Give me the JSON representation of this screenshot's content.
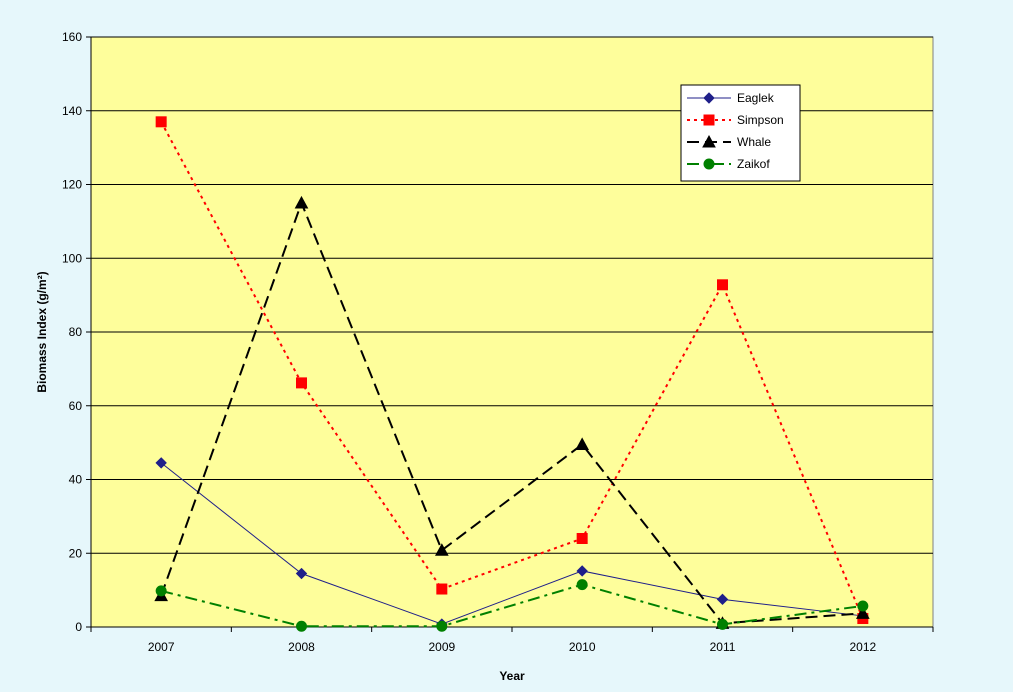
{
  "chart_data": {
    "type": "line",
    "title": "",
    "xlabel": "Year",
    "ylabel": "Biomass Index (g/m²)",
    "categories": [
      "2007",
      "2008",
      "2009",
      "2010",
      "2011",
      "2012"
    ],
    "ylim": [
      0,
      160
    ],
    "yticks": [
      0,
      20,
      40,
      60,
      80,
      100,
      120,
      140,
      160
    ],
    "grid": true,
    "legend_position": "top-right",
    "plot_background": "#fefe9b",
    "series": [
      {
        "name": "Eaglek",
        "values": [
          44.5,
          14.5,
          0.8,
          15.2,
          7.5,
          3.0
        ],
        "color": "#1f1f8a",
        "marker": "diamond",
        "dash": "solid"
      },
      {
        "name": "Simpson",
        "values": [
          137,
          66.2,
          10.3,
          24.0,
          92.8,
          2.3
        ],
        "color": "#ff0000",
        "marker": "square",
        "dash": "dotted"
      },
      {
        "name": "Whale",
        "values": [
          8.5,
          115,
          20.8,
          49.5,
          1.0,
          3.7
        ],
        "color": "#000000",
        "marker": "triangle",
        "dash": "dashed"
      },
      {
        "name": "Zaikof",
        "values": [
          9.8,
          0.2,
          0.2,
          11.5,
          0.7,
          5.7
        ],
        "color": "#008000",
        "marker": "circle",
        "dash": "dashdot"
      }
    ]
  }
}
